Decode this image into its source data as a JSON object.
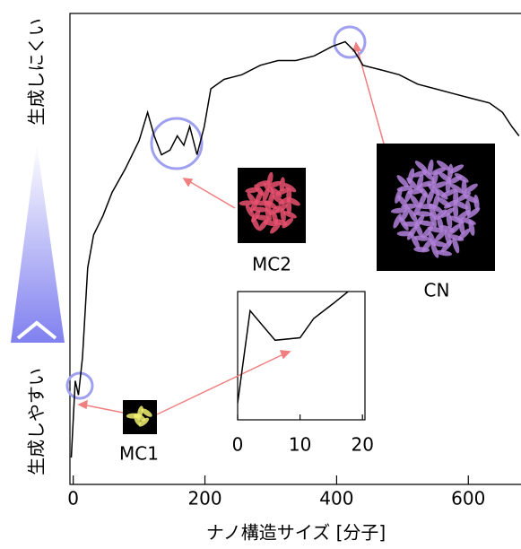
{
  "chart_data": [
    {
      "type": "line",
      "xlabel": "ナノ構造サイズ [分子]",
      "ylabel_top": "生成しにくい",
      "ylabel_bottom": "生成しやすい",
      "annotations": [
        "MC1",
        "MC2",
        "CN"
      ],
      "x": [
        -3,
        3,
        8,
        14,
        22,
        31,
        45,
        59,
        79,
        100,
        113,
        123,
        134,
        147,
        158,
        168,
        177,
        188,
        199,
        209,
        229,
        256,
        284,
        311,
        338,
        366,
        393,
        413,
        427,
        440,
        468,
        495,
        523,
        550,
        577,
        604,
        632,
        652,
        666,
        677
      ],
      "series": [
        {
          "color": "#000000",
          "values": [
            5.7,
            22,
            19,
            27,
            46,
            53,
            57,
            62,
            67,
            73,
            79,
            74,
            70,
            71,
            74,
            72,
            76,
            70,
            76,
            84,
            86,
            87,
            89,
            90,
            90,
            91,
            93,
            94,
            92,
            89,
            88,
            87,
            85,
            84,
            83,
            82,
            81,
            79,
            76,
            74
          ]
        }
      ],
      "xlim": [
        -5,
        680
      ],
      "ylim": [
        0,
        100
      ],
      "xticks": [
        0,
        200,
        400,
        600
      ]
    },
    {
      "type": "line",
      "x": [
        0,
        2,
        6,
        10,
        12.2,
        15.4,
        17.7
      ],
      "series": [
        {
          "color": "#000000",
          "values": [
            13,
            85,
            62,
            64,
            79,
            91,
            100
          ]
        }
      ],
      "xlim": [
        0,
        20.4
      ],
      "ylim": [
        0,
        100
      ],
      "xticks": [
        0,
        10,
        20
      ]
    }
  ]
}
